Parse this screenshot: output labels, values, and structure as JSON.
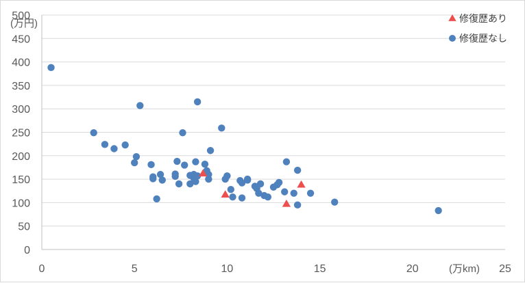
{
  "chart_data": {
    "type": "scatter",
    "title": "",
    "ylabel": "(万円)",
    "xlabel": "(万km)",
    "xlim": [
      0,
      25
    ],
    "ylim": [
      0,
      500
    ],
    "x_ticks": [
      0,
      5,
      10,
      15,
      20,
      25
    ],
    "y_ticks": [
      0,
      50,
      100,
      150,
      200,
      250,
      300,
      350,
      400,
      450,
      500
    ],
    "grid": "horizontal",
    "legend_position": "top-right",
    "series": [
      {
        "name": "修復歴あり",
        "marker": "triangle",
        "color": "#ed4e4e",
        "points": [
          [
            8.7,
            162
          ],
          [
            9.9,
            117
          ],
          [
            13.2,
            97
          ],
          [
            14,
            138
          ]
        ]
      },
      {
        "name": "修復歴なし",
        "marker": "circle",
        "color": "#4f81bd",
        "points": [
          [
            0.5,
            388
          ],
          [
            2.8,
            249
          ],
          [
            3.4,
            224
          ],
          [
            3.9,
            215
          ],
          [
            4.5,
            223
          ],
          [
            5.0,
            185
          ],
          [
            5.1,
            198
          ],
          [
            5.3,
            307
          ],
          [
            5.9,
            181
          ],
          [
            6.0,
            155
          ],
          [
            6.0,
            151
          ],
          [
            6.2,
            108
          ],
          [
            6.4,
            160
          ],
          [
            6.5,
            148
          ],
          [
            7.2,
            161
          ],
          [
            7.2,
            156
          ],
          [
            7.3,
            188
          ],
          [
            7.4,
            140
          ],
          [
            7.6,
            249
          ],
          [
            7.7,
            180
          ],
          [
            8.0,
            158
          ],
          [
            8.0,
            140
          ],
          [
            8.2,
            160
          ],
          [
            8.2,
            152
          ],
          [
            8.3,
            145
          ],
          [
            8.3,
            187
          ],
          [
            8.4,
            157
          ],
          [
            8.4,
            315
          ],
          [
            8.8,
            182
          ],
          [
            8.9,
            168
          ],
          [
            9.0,
            150
          ],
          [
            9.0,
            160
          ],
          [
            9.1,
            211
          ],
          [
            9.7,
            259
          ],
          [
            9.9,
            150
          ],
          [
            10.0,
            157
          ],
          [
            10.2,
            128
          ],
          [
            10.3,
            112
          ],
          [
            10.7,
            147
          ],
          [
            10.8,
            142
          ],
          [
            10.8,
            110
          ],
          [
            11.1,
            148
          ],
          [
            11.1,
            150
          ],
          [
            11.5,
            135
          ],
          [
            11.6,
            130
          ],
          [
            11.7,
            120
          ],
          [
            11.8,
            140
          ],
          [
            12.0,
            115
          ],
          [
            12.2,
            112
          ],
          [
            12.5,
            133
          ],
          [
            12.7,
            138
          ],
          [
            12.8,
            143
          ],
          [
            13.1,
            123
          ],
          [
            13.2,
            187
          ],
          [
            13.6,
            120
          ],
          [
            13.8,
            169
          ],
          [
            13.8,
            95
          ],
          [
            14.5,
            120
          ],
          [
            15.8,
            101
          ],
          [
            21.4,
            83
          ]
        ]
      }
    ]
  }
}
